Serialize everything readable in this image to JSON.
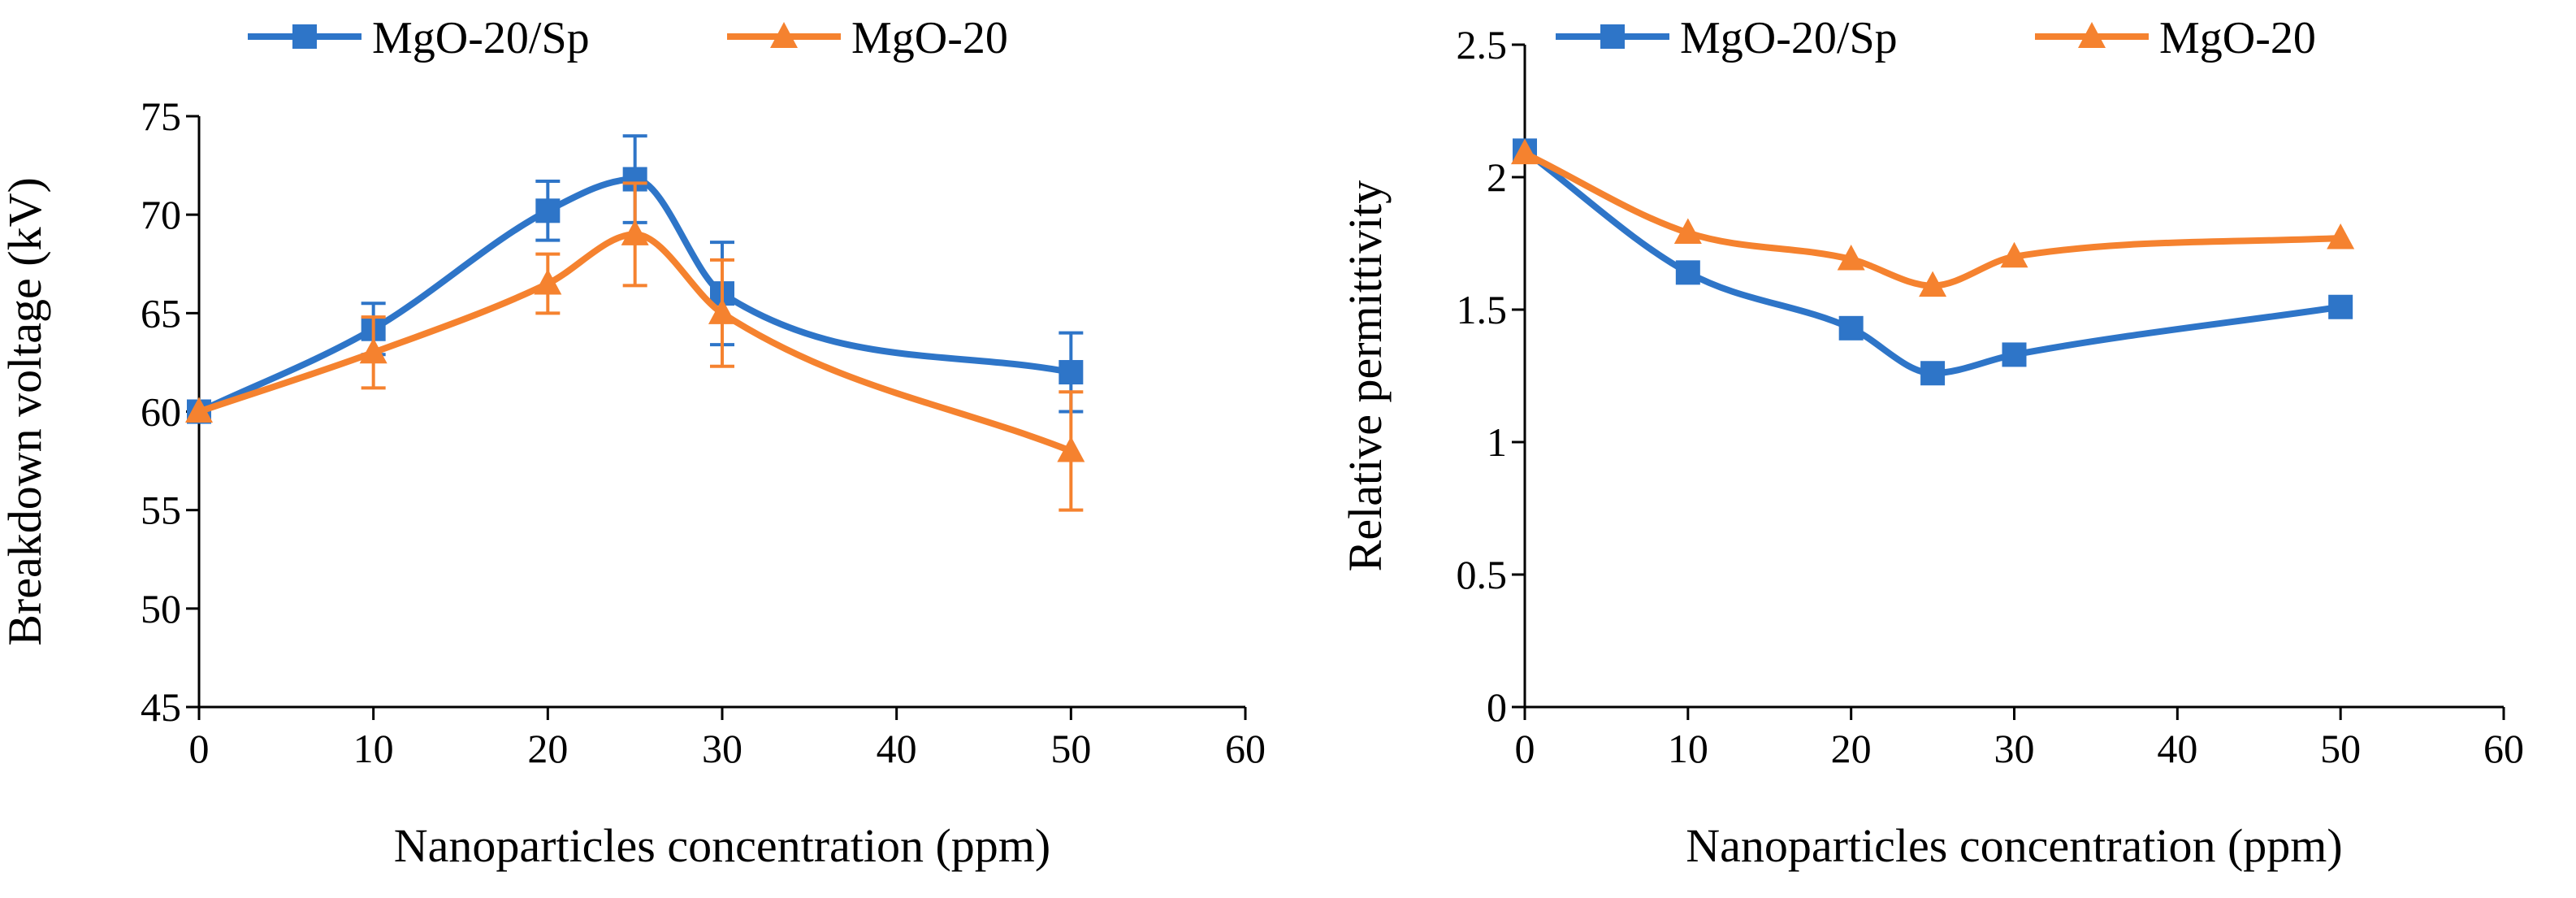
{
  "colors": {
    "blue": "#2E75C8",
    "orange": "#F5822F",
    "axis": "#000000"
  },
  "chart_data": [
    {
      "type": "line",
      "title": "",
      "xlabel": "Nanoparticles concentration (ppm)",
      "ylabel": "Breakdown voltage (kV)",
      "xlim": [
        0,
        60
      ],
      "ylim": [
        45,
        75
      ],
      "xticks": [
        0,
        10,
        20,
        30,
        40,
        50,
        60
      ],
      "yticks": [
        45,
        50,
        55,
        60,
        65,
        70,
        75
      ],
      "grid": false,
      "legend_position": "top",
      "smooth": true,
      "series": [
        {
          "name": "MgO-20/Sp",
          "marker": "square",
          "color": "#2E75C8",
          "x": [
            0,
            10,
            20,
            25,
            30,
            50
          ],
          "y": [
            60,
            64.2,
            70.2,
            71.8,
            66,
            62
          ],
          "err": [
            0,
            1.3,
            1.5,
            2.2,
            2.6,
            2.0
          ]
        },
        {
          "name": "MgO-20",
          "marker": "triangle",
          "color": "#F5822F",
          "x": [
            0,
            10,
            20,
            25,
            30,
            50
          ],
          "y": [
            60,
            63,
            66.5,
            69,
            65,
            58
          ],
          "err": [
            0,
            1.8,
            1.5,
            2.6,
            2.7,
            3.0
          ]
        }
      ]
    },
    {
      "type": "line",
      "title": "",
      "xlabel": "Nanoparticles concentration (ppm)",
      "ylabel": "Relative permittivity",
      "xlim": [
        0,
        60
      ],
      "ylim": [
        0,
        2.5
      ],
      "xticks": [
        0,
        10,
        20,
        30,
        40,
        50,
        60
      ],
      "yticks": [
        0,
        0.5,
        1,
        1.5,
        2,
        2.5
      ],
      "grid": false,
      "legend_position": "top",
      "smooth": true,
      "series": [
        {
          "name": "MgO-20/Sp",
          "marker": "square",
          "color": "#2E75C8",
          "x": [
            0,
            10,
            20,
            25,
            30,
            50
          ],
          "y": [
            2.1,
            1.64,
            1.43,
            1.26,
            1.33,
            1.51
          ]
        },
        {
          "name": "MgO-20",
          "marker": "triangle",
          "color": "#F5822F",
          "x": [
            0,
            10,
            20,
            25,
            30,
            50
          ],
          "y": [
            2.09,
            1.79,
            1.69,
            1.59,
            1.7,
            1.77
          ]
        }
      ]
    }
  ]
}
